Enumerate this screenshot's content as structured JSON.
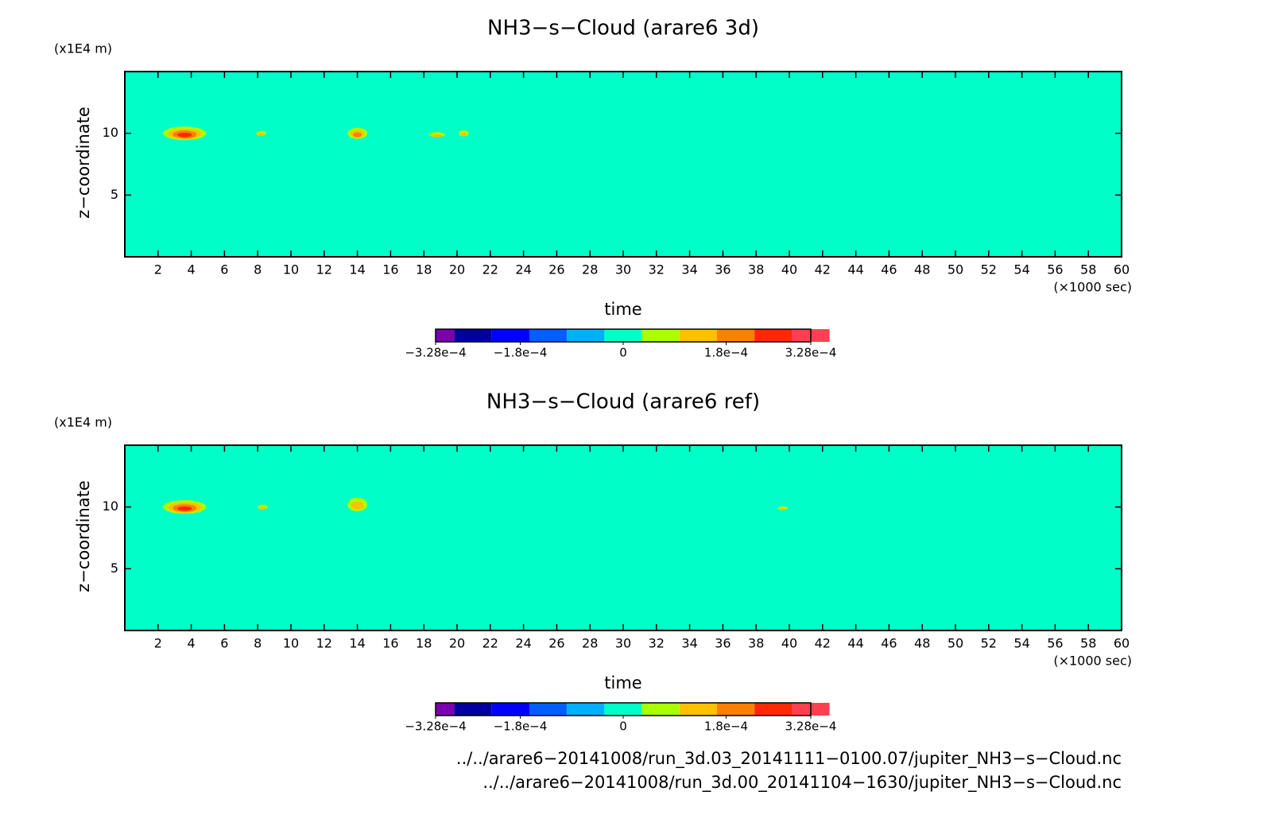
{
  "chart_data": [
    {
      "type": "contour",
      "title": "NH3−s−Cloud (arare6 3d)",
      "xlabel": "time",
      "xunit": "(×1000 sec)",
      "ylabel": "z−coordinate",
      "yunit": "(x1E4 m)",
      "xlim": [
        0,
        60
      ],
      "xticks": [
        2,
        4,
        6,
        8,
        10,
        12,
        14,
        16,
        18,
        20,
        22,
        24,
        26,
        28,
        30,
        32,
        34,
        36,
        38,
        40,
        42,
        44,
        46,
        48,
        50,
        52,
        54,
        56,
        58,
        60
      ],
      "ylim": [
        0,
        15
      ],
      "yticks": [
        5,
        10
      ],
      "regions": [
        {
          "x": 3.6,
          "z": 10,
          "dx": 1.3,
          "dz": 0.55,
          "value": 0.00028
        },
        {
          "x": 8.2,
          "z": 10,
          "dx": 0.3,
          "dz": 0.2,
          "value": 0.0001
        },
        {
          "x": 14,
          "z": 10,
          "dx": 0.6,
          "dz": 0.45,
          "value": 0.00022
        },
        {
          "x": 18.8,
          "z": 9.9,
          "dx": 0.5,
          "dz": 0.2,
          "value": 0.0001
        },
        {
          "x": 20.4,
          "z": 10,
          "dx": 0.3,
          "dz": 0.25,
          "value": 0.0001
        }
      ],
      "colorbar": {
        "clim": [
          -0.000328,
          0.000328
        ],
        "colors": [
          "#7a00b0",
          "#0000a0",
          "#0000ff",
          "#0060ff",
          "#00b0ff",
          "#00ffc8",
          "#aaff00",
          "#ffc000",
          "#ff7f00",
          "#ff2800",
          "#ff4050",
          "#ffb0b0"
        ],
        "ticks": [
          {
            "value": -0.000328,
            "label": "−3.28e−4"
          },
          {
            "value": -0.00018,
            "label": "−1.8e−4"
          },
          0,
          {
            "value": 0.00018,
            "label": "1.8e−4"
          },
          {
            "value": 0.000328,
            "label": "3.28e−4"
          }
        ]
      }
    },
    {
      "type": "contour",
      "title": "NH3−s−Cloud (arare6 ref)",
      "xlabel": "time",
      "xunit": "(×1000 sec)",
      "ylabel": "z−coordinate",
      "yunit": "(x1E4 m)",
      "xlim": [
        0,
        60
      ],
      "xticks": [
        2,
        4,
        6,
        8,
        10,
        12,
        14,
        16,
        18,
        20,
        22,
        24,
        26,
        28,
        30,
        32,
        34,
        36,
        38,
        40,
        42,
        44,
        46,
        48,
        50,
        52,
        54,
        56,
        58,
        60
      ],
      "ylim": [
        0,
        15
      ],
      "yticks": [
        5,
        10
      ],
      "regions": [
        {
          "x": 3.6,
          "z": 10,
          "dx": 1.3,
          "dz": 0.55,
          "value": 0.00028
        },
        {
          "x": 8.3,
          "z": 10,
          "dx": 0.3,
          "dz": 0.2,
          "value": 0.0001
        },
        {
          "x": 14,
          "z": 10.2,
          "dx": 0.6,
          "dz": 0.55,
          "value": 0.00012
        },
        {
          "x": 39.6,
          "z": 9.9,
          "dx": 0.3,
          "dz": 0.15,
          "value": 0.0001
        }
      ],
      "colorbar": {
        "clim": [
          -0.000328,
          0.000328
        ],
        "colors": [
          "#7a00b0",
          "#0000a0",
          "#0000ff",
          "#0060ff",
          "#00b0ff",
          "#00ffc8",
          "#aaff00",
          "#ffc000",
          "#ff7f00",
          "#ff2800",
          "#ff4050",
          "#ffb0b0"
        ],
        "ticks": [
          {
            "value": -0.000328,
            "label": "−3.28e−4"
          },
          {
            "value": -0.00018,
            "label": "−1.8e−4"
          },
          0,
          {
            "value": 0.00018,
            "label": "1.8e−4"
          },
          {
            "value": 0.000328,
            "label": "3.28e−4"
          }
        ]
      }
    }
  ],
  "footer": [
    "../../arare6−20141008/run_3d.03_20141111−0100.07/jupiter_NH3−s−Cloud.nc",
    "../../arare6−20141008/run_3d.00_20141104−1630/jupiter_NH3−s−Cloud.nc"
  ]
}
